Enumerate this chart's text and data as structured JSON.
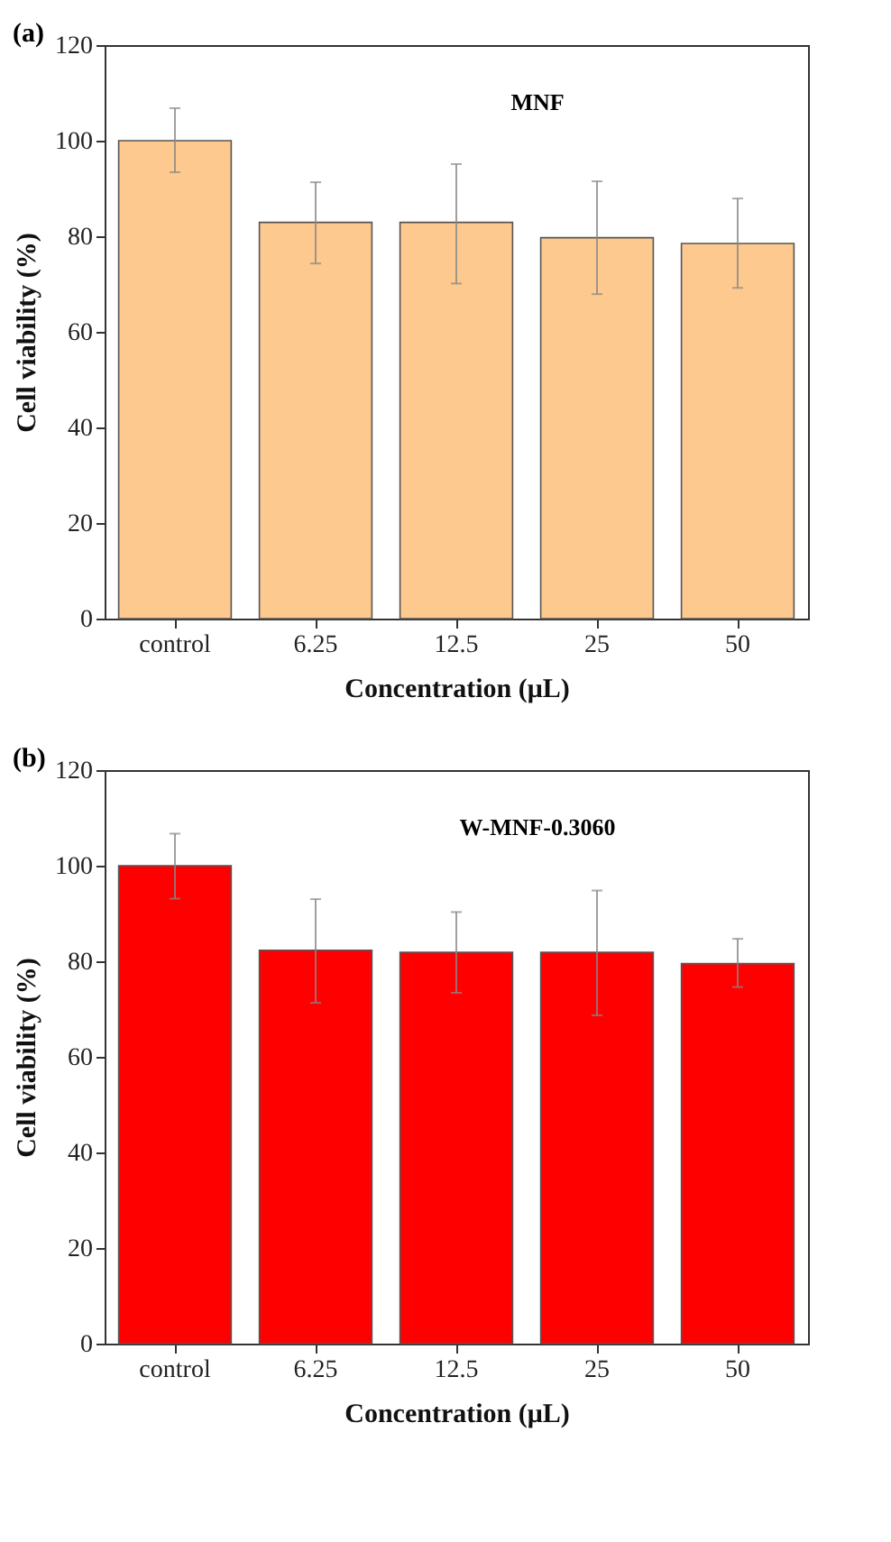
{
  "chart_data": [
    {
      "type": "bar",
      "title": "(a)",
      "xlabel": "Concentration (μL)",
      "ylabel": "Cell viability (%)",
      "annotations": [
        "MNF"
      ],
      "categories": [
        "control",
        "6.25",
        "12.5",
        "25",
        "50"
      ],
      "series": [
        {
          "color": "#fdc98e",
          "values": [
            100,
            82.9,
            82.9,
            79.7,
            78.5
          ],
          "errors": [
            [
              93.4,
              106.8
            ],
            [
              74.3,
              91.3
            ],
            [
              70.1,
              95.1
            ],
            [
              67.9,
              91.5
            ],
            [
              69.2,
              87.9
            ]
          ]
        }
      ],
      "ylim": [
        0,
        120
      ],
      "yticks": [
        0,
        20,
        40,
        60,
        80,
        100,
        120
      ],
      "grid": false
    },
    {
      "type": "bar",
      "title": "(b)",
      "xlabel": "Concentration (μL)",
      "ylabel": "Cell viability (%)",
      "annotations": [
        "W-MNF-0.3060"
      ],
      "categories": [
        "control",
        "6.25",
        "12.5",
        "25",
        "50"
      ],
      "series": [
        {
          "color": "#ff0000",
          "values": [
            100,
            82.3,
            81.9,
            81.9,
            79.5
          ],
          "errors": [
            [
              93.1,
              106.7
            ],
            [
              71.3,
              93.0
            ],
            [
              73.4,
              90.3
            ],
            [
              68.7,
              94.8
            ],
            [
              74.6,
              84.7
            ]
          ]
        }
      ],
      "ylim": [
        0,
        120
      ],
      "yticks": [
        0,
        20,
        40,
        60,
        80,
        100,
        120
      ],
      "grid": false
    }
  ]
}
